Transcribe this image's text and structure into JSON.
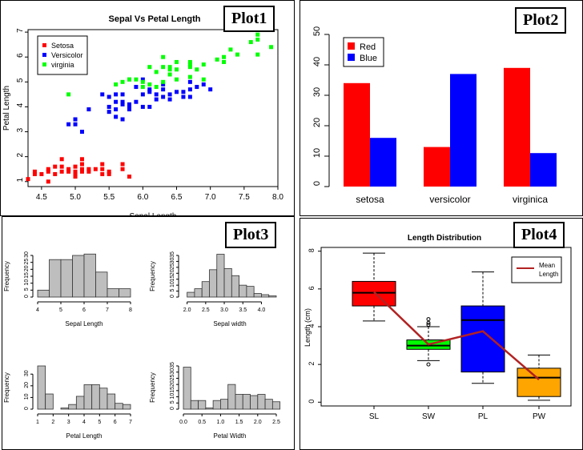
{
  "plot_badges": [
    "Plot1",
    "Plot2",
    "Plot3",
    "Plot4"
  ],
  "colors": {
    "red": "#ff0000",
    "blue": "#0000ff",
    "green": "#00ff00",
    "orange": "#ffa500",
    "grey": "#bebebe",
    "mean_line": "#b22222"
  },
  "chart_data": [
    {
      "type": "scatter",
      "title": "Sepal Vs Petal Length",
      "xlabel": "Sepal Length",
      "ylabel": "Petal Length",
      "xlim": [
        4.3,
        8.0
      ],
      "ylim": [
        0.8,
        7.1
      ],
      "xticks": [
        "4.5",
        "5.0",
        "5.5",
        "6.0",
        "6.5",
        "7.0",
        "7.5",
        "8.0"
      ],
      "yticks": [
        "1",
        "2",
        "3",
        "4",
        "5",
        "6",
        "7"
      ],
      "legend_position": "top-left",
      "series": [
        {
          "name": "Setosa",
          "color": "#ff0000",
          "points": [
            [
              4.3,
              1.1
            ],
            [
              4.4,
              1.4
            ],
            [
              4.4,
              1.3
            ],
            [
              4.5,
              1.3
            ],
            [
              4.6,
              1.4
            ],
            [
              4.6,
              1.0
            ],
            [
              4.6,
              1.5
            ],
            [
              4.7,
              1.3
            ],
            [
              4.7,
              1.6
            ],
            [
              4.8,
              1.6
            ],
            [
              4.8,
              1.4
            ],
            [
              4.8,
              1.9
            ],
            [
              4.9,
              1.4
            ],
            [
              4.9,
              1.5
            ],
            [
              5.0,
              1.4
            ],
            [
              5.0,
              1.6
            ],
            [
              5.0,
              1.2
            ],
            [
              5.0,
              1.3
            ],
            [
              5.1,
              1.4
            ],
            [
              5.1,
              1.5
            ],
            [
              5.1,
              1.7
            ],
            [
              5.1,
              1.9
            ],
            [
              5.2,
              1.5
            ],
            [
              5.2,
              1.4
            ],
            [
              5.3,
              1.5
            ],
            [
              5.4,
              1.7
            ],
            [
              5.4,
              1.5
            ],
            [
              5.4,
              1.3
            ],
            [
              5.5,
              1.4
            ],
            [
              5.5,
              1.3
            ],
            [
              5.7,
              1.5
            ],
            [
              5.7,
              1.7
            ],
            [
              5.8,
              1.2
            ]
          ]
        },
        {
          "name": "Versicolor",
          "color": "#0000ff",
          "points": [
            [
              4.9,
              3.3
            ],
            [
              5.0,
              3.5
            ],
            [
              5.0,
              3.3
            ],
            [
              5.1,
              3.0
            ],
            [
              5.2,
              3.9
            ],
            [
              5.4,
              4.5
            ],
            [
              5.5,
              4.0
            ],
            [
              5.5,
              3.8
            ],
            [
              5.5,
              4.4
            ],
            [
              5.6,
              3.6
            ],
            [
              5.6,
              3.9
            ],
            [
              5.6,
              4.2
            ],
            [
              5.6,
              4.5
            ],
            [
              5.7,
              3.5
            ],
            [
              5.7,
              4.1
            ],
            [
              5.7,
              4.2
            ],
            [
              5.7,
              4.5
            ],
            [
              5.8,
              3.9
            ],
            [
              5.8,
              4.0
            ],
            [
              5.8,
              4.1
            ],
            [
              5.9,
              4.2
            ],
            [
              5.9,
              4.8
            ],
            [
              6.0,
              4.0
            ],
            [
              6.0,
              4.5
            ],
            [
              6.0,
              5.1
            ],
            [
              6.1,
              4.0
            ],
            [
              6.1,
              4.7
            ],
            [
              6.1,
              4.6
            ],
            [
              6.2,
              4.3
            ],
            [
              6.2,
              4.5
            ],
            [
              6.3,
              4.4
            ],
            [
              6.3,
              4.7
            ],
            [
              6.3,
              4.9
            ],
            [
              6.4,
              4.3
            ],
            [
              6.4,
              4.5
            ],
            [
              6.5,
              4.6
            ],
            [
              6.6,
              4.4
            ],
            [
              6.6,
              4.6
            ],
            [
              6.7,
              4.4
            ],
            [
              6.7,
              4.7
            ],
            [
              6.7,
              5.0
            ],
            [
              6.8,
              4.8
            ],
            [
              6.9,
              4.9
            ],
            [
              7.0,
              4.7
            ]
          ]
        },
        {
          "name": "virginia",
          "color": "#00ff00",
          "points": [
            [
              4.9,
              4.5
            ],
            [
              5.6,
              4.9
            ],
            [
              5.7,
              5.0
            ],
            [
              5.8,
              5.1
            ],
            [
              5.8,
              5.1
            ],
            [
              5.9,
              5.1
            ],
            [
              6.0,
              5.0
            ],
            [
              6.0,
              4.8
            ],
            [
              6.1,
              4.9
            ],
            [
              6.1,
              5.6
            ],
            [
              6.2,
              4.8
            ],
            [
              6.2,
              5.4
            ],
            [
              6.3,
              5.0
            ],
            [
              6.3,
              5.6
            ],
            [
              6.3,
              6.0
            ],
            [
              6.4,
              5.3
            ],
            [
              6.4,
              5.5
            ],
            [
              6.4,
              5.6
            ],
            [
              6.5,
              5.1
            ],
            [
              6.5,
              5.5
            ],
            [
              6.5,
              5.8
            ],
            [
              6.7,
              5.2
            ],
            [
              6.7,
              5.6
            ],
            [
              6.7,
              5.7
            ],
            [
              6.7,
              5.8
            ],
            [
              6.8,
              5.5
            ],
            [
              6.9,
              5.1
            ],
            [
              6.9,
              5.7
            ],
            [
              7.1,
              5.9
            ],
            [
              7.2,
              5.8
            ],
            [
              7.2,
              6.0
            ],
            [
              7.3,
              6.3
            ],
            [
              7.4,
              6.1
            ],
            [
              7.6,
              6.6
            ],
            [
              7.7,
              6.7
            ],
            [
              7.7,
              6.9
            ],
            [
              7.7,
              6.1
            ],
            [
              7.9,
              6.4
            ]
          ]
        }
      ]
    },
    {
      "type": "bar",
      "categories": [
        "setosa",
        "versicolor",
        "virginica"
      ],
      "ylim": [
        0,
        50
      ],
      "yticks": [
        "0",
        "10",
        "20",
        "30",
        "40",
        "50"
      ],
      "legend_position": "top-left",
      "series": [
        {
          "name": "Red",
          "color": "#ff0000",
          "values": [
            34,
            13,
            39
          ]
        },
        {
          "name": "Blue",
          "color": "#0000ff",
          "values": [
            16,
            37,
            11
          ]
        }
      ]
    },
    {
      "type": "histogram",
      "panels": [
        {
          "xlabel": "Sepal Length",
          "ylabel": "Frequency",
          "xlim": [
            4,
            8
          ],
          "ylim": [
            0,
            30
          ],
          "xticks": [
            "4",
            "5",
            "6",
            "7",
            "8"
          ],
          "yticks": [
            "0",
            "5",
            "10",
            "15",
            "20",
            "25",
            "30"
          ],
          "bins": [
            [
              4.0,
              4.5,
              5
            ],
            [
              4.5,
              5.0,
              27
            ],
            [
              5.0,
              5.5,
              27
            ],
            [
              5.5,
              6.0,
              30
            ],
            [
              6.0,
              6.5,
              31
            ],
            [
              6.5,
              7.0,
              18
            ],
            [
              7.0,
              7.5,
              6
            ],
            [
              7.5,
              8.0,
              6
            ]
          ]
        },
        {
          "xlabel": "Sepal width",
          "ylabel": "Frequency",
          "xlim": [
            1.9,
            4.4
          ],
          "ylim": [
            0,
            35
          ],
          "xticks": [
            "2.0",
            "2.5",
            "3.0",
            "3.5",
            "4.0"
          ],
          "yticks": [
            "0",
            "5",
            "10",
            "15",
            "20",
            "25",
            "30",
            "35"
          ],
          "bins": [
            [
              2.0,
              2.2,
              4
            ],
            [
              2.2,
              2.4,
              7
            ],
            [
              2.4,
              2.6,
              13
            ],
            [
              2.6,
              2.8,
              23
            ],
            [
              2.8,
              3.0,
              36
            ],
            [
              3.0,
              3.2,
              24
            ],
            [
              3.2,
              3.4,
              18
            ],
            [
              3.4,
              3.6,
              10
            ],
            [
              3.6,
              3.8,
              9
            ],
            [
              3.8,
              4.0,
              3
            ],
            [
              4.0,
              4.2,
              2
            ],
            [
              4.2,
              4.4,
              1
            ]
          ]
        },
        {
          "xlabel": "Petal Length",
          "ylabel": "Frequency",
          "xlim": [
            1,
            7
          ],
          "ylim": [
            0,
            37
          ],
          "xticks": [
            "1",
            "2",
            "3",
            "4",
            "5",
            "6",
            "7"
          ],
          "yticks": [
            "0",
            "10",
            "20",
            "30"
          ],
          "bins": [
            [
              1.0,
              1.5,
              37
            ],
            [
              1.5,
              2.0,
              13
            ],
            [
              2.0,
              2.5,
              0
            ],
            [
              2.5,
              3.0,
              1
            ],
            [
              3.0,
              3.5,
              4
            ],
            [
              3.5,
              4.0,
              11
            ],
            [
              4.0,
              4.5,
              21
            ],
            [
              4.5,
              5.0,
              21
            ],
            [
              5.0,
              5.5,
              18
            ],
            [
              5.5,
              6.0,
              13
            ],
            [
              6.0,
              6.5,
              5
            ],
            [
              6.5,
              7.0,
              4
            ]
          ]
        },
        {
          "xlabel": "Petal Width",
          "ylabel": "Frequency",
          "xlim": [
            0,
            2.5
          ],
          "ylim": [
            0,
            35
          ],
          "xticks": [
            "0.0",
            "0.5",
            "1.0",
            "1.5",
            "2.0",
            "2.5"
          ],
          "yticks": [
            "0",
            "5",
            "10",
            "15",
            "20",
            "25",
            "30",
            "35"
          ],
          "bins": [
            [
              0.0,
              0.2,
              34
            ],
            [
              0.2,
              0.4,
              7
            ],
            [
              0.4,
              0.6,
              7
            ],
            [
              0.6,
              0.8,
              1
            ],
            [
              0.8,
              1.0,
              7
            ],
            [
              1.0,
              1.2,
              8
            ],
            [
              1.2,
              1.4,
              20
            ],
            [
              1.4,
              1.6,
              12
            ],
            [
              1.6,
              1.8,
              12
            ],
            [
              1.8,
              2.0,
              11
            ],
            [
              2.0,
              2.2,
              12
            ],
            [
              2.2,
              2.4,
              8
            ],
            [
              2.4,
              2.6,
              6
            ]
          ]
        }
      ]
    },
    {
      "type": "boxplot",
      "title": "Length Distribution",
      "ylabel": "Length (cm)",
      "ylim": [
        -0.2,
        8.2
      ],
      "yticks": [
        "0",
        "2",
        "4",
        "6",
        "8"
      ],
      "categories": [
        "SL",
        "SW",
        "PL",
        "PW"
      ],
      "legend_position": "top-right",
      "boxes": [
        {
          "label": "SL",
          "color": "#ff0000",
          "min": 4.3,
          "q1": 5.1,
          "median": 5.8,
          "q3": 6.4,
          "max": 7.9,
          "outliers": []
        },
        {
          "label": "SW",
          "color": "#00ff00",
          "min": 2.2,
          "q1": 2.8,
          "median": 3.0,
          "q3": 3.3,
          "max": 4.0,
          "outliers": [
            2.0,
            4.1,
            4.2,
            4.4
          ]
        },
        {
          "label": "PL",
          "color": "#0000ff",
          "min": 1.0,
          "q1": 1.6,
          "median": 4.35,
          "q3": 5.1,
          "max": 6.9,
          "outliers": []
        },
        {
          "label": "PW",
          "color": "#ffa500",
          "min": 0.1,
          "q1": 0.3,
          "median": 1.3,
          "q3": 1.8,
          "max": 2.5,
          "outliers": []
        }
      ],
      "mean_line": {
        "name": "Mean Length",
        "color": "#b22222",
        "values": [
          5.84,
          3.06,
          3.76,
          1.2
        ]
      }
    }
  ]
}
